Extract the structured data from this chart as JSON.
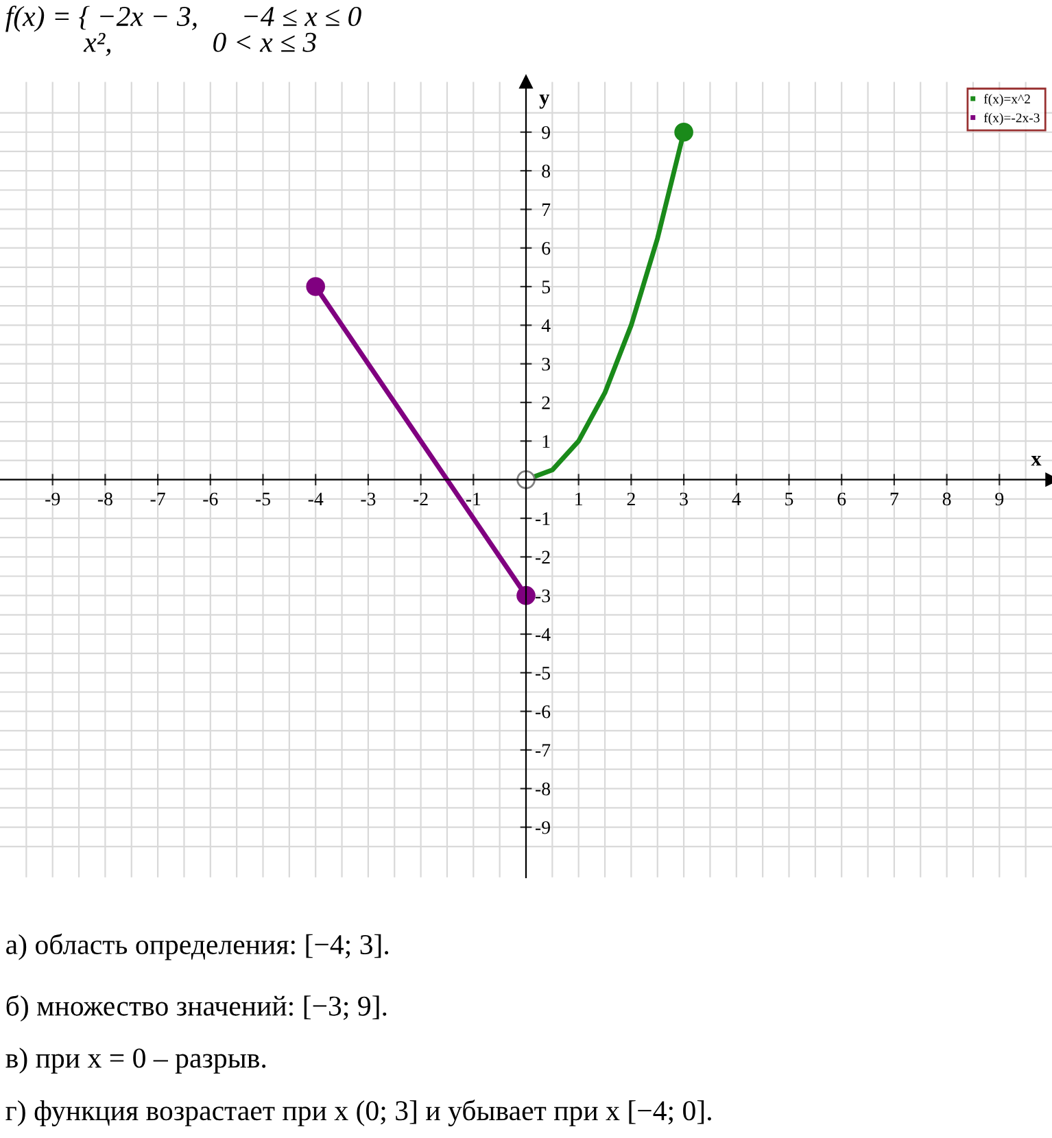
{
  "chart_data": {
    "type": "line",
    "title": "f(x) = { −2x − 3,      −4 ≤ x ≤ 0\n           x²,              0 < x ≤ 3",
    "xlabel": "x",
    "ylabel": "y",
    "xlim": [
      -10,
      10
    ],
    "ylim": [
      -10.3,
      10.3
    ],
    "xticks": [
      -9,
      -8,
      -7,
      -6,
      -5,
      -4,
      -3,
      -2,
      -1,
      1,
      2,
      3,
      4,
      5,
      6,
      7,
      8,
      9
    ],
    "yticks": [
      -9,
      -8,
      -7,
      -6,
      -5,
      -4,
      -3,
      -2,
      -1,
      1,
      2,
      3,
      4,
      5,
      6,
      7,
      8,
      9
    ],
    "grid": true,
    "legend": "top right",
    "series": [
      {
        "name": "f(x)=x^2",
        "marker": "none",
        "color": "#1a8a1a",
        "x": [
          0,
          0.5,
          1,
          1.5,
          2,
          2.5,
          3
        ],
        "values": [
          0,
          0.25,
          1,
          2.25,
          4,
          6.25,
          9
        ]
      },
      {
        "name": "f(x)=-2x-3",
        "marker": "none",
        "color": "#800080",
        "x": [
          -4,
          0
        ],
        "values": [
          5,
          -3
        ]
      },
      {
        "type": "scatter",
        "marker": "circle",
        "color": "#800080",
        "x": [
          -4,
          0
        ],
        "values": [
          5,
          -3
        ]
      },
      {
        "type": "scatter",
        "marker": "circle",
        "color": "#1a8a1a",
        "x": [
          3
        ],
        "values": [
          9
        ]
      },
      {
        "type": "scatter",
        "marker": "circle",
        "color": "#ffffff",
        "x": [
          0
        ],
        "values": [
          0
        ]
      }
    ],
    "annotations": [
      "а) область определения: [−4; 3].",
      "б) множество значений: [−3; 9].",
      "в) при x = 0 – разрыв.",
      "г) функция возрастает при x (0; 3] и убывает при x [−4; 0]."
    ]
  }
}
